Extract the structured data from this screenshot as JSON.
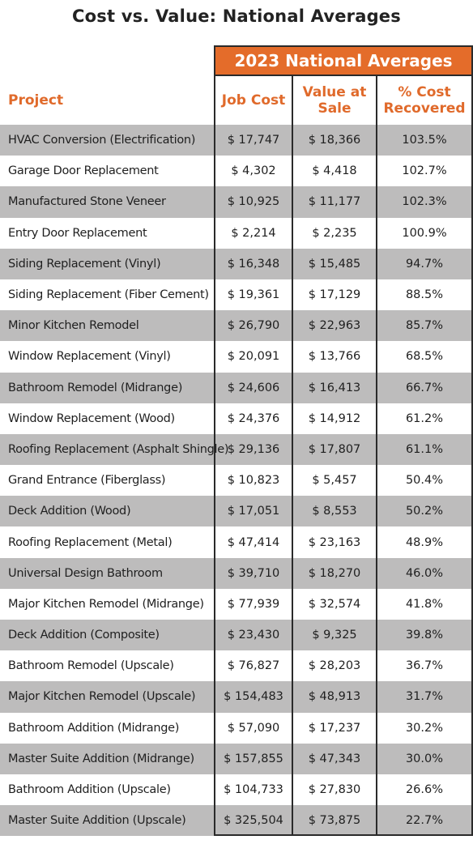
{
  "title": "Cost vs. Value: National Averages",
  "banner": "2023 National Averages",
  "headers": {
    "project": "Project",
    "job_cost": "Job Cost",
    "value_at_sale": "Value at Sale",
    "pct_recovered": "% Cost Recovered"
  },
  "colors": {
    "accent": "#e46c2a",
    "row_shade": "#bdbcbc"
  },
  "chart_data": {
    "type": "table",
    "title": "Cost vs. Value: National Averages",
    "columns": [
      "Project",
      "Job Cost",
      "Value at Sale",
      "% Cost Recovered"
    ],
    "rows": [
      [
        "HVAC Conversion (Electrification)",
        "$ 17,747",
        "$ 18,366",
        "103.5%"
      ],
      [
        "Garage Door Replacement",
        "$ 4,302",
        "$ 4,418",
        "102.7%"
      ],
      [
        "Manufactured Stone Veneer",
        "$ 10,925",
        "$ 11,177",
        "102.3%"
      ],
      [
        "Entry Door Replacement",
        "$ 2,214",
        "$ 2,235",
        "100.9%"
      ],
      [
        "Siding Replacement (Vinyl)",
        "$ 16,348",
        "$ 15,485",
        "94.7%"
      ],
      [
        "Siding Replacement (Fiber Cement)",
        "$ 19,361",
        "$ 17,129",
        "88.5%"
      ],
      [
        "Minor Kitchen Remodel",
        "$ 26,790",
        "$ 22,963",
        "85.7%"
      ],
      [
        "Window Replacement (Vinyl)",
        "$ 20,091",
        "$ 13,766",
        "68.5%"
      ],
      [
        "Bathroom Remodel (Midrange)",
        "$ 24,606",
        "$ 16,413",
        "66.7%"
      ],
      [
        "Window Replacement (Wood)",
        "$ 24,376",
        "$ 14,912",
        "61.2%"
      ],
      [
        "Roofing Replacement (Asphalt Shingle)",
        "$ 29,136",
        "$ 17,807",
        "61.1%"
      ],
      [
        "Grand Entrance (Fiberglass)",
        "$ 10,823",
        "$ 5,457",
        "50.4%"
      ],
      [
        "Deck Addition (Wood)",
        "$ 17,051",
        "$ 8,553",
        "50.2%"
      ],
      [
        "Roofing Replacement (Metal)",
        "$ 47,414",
        "$ 23,163",
        "48.9%"
      ],
      [
        "Universal Design Bathroom",
        "$ 39,710",
        "$ 18,270",
        "46.0%"
      ],
      [
        "Major Kitchen Remodel (Midrange)",
        "$ 77,939",
        "$ 32,574",
        "41.8%"
      ],
      [
        "Deck Addition (Composite)",
        "$ 23,430",
        "$ 9,325",
        "39.8%"
      ],
      [
        "Bathroom Remodel (Upscale)",
        "$ 76,827",
        "$ 28,203",
        "36.7%"
      ],
      [
        "Major Kitchen Remodel (Upscale)",
        "$ 154,483",
        "$ 48,913",
        "31.7%"
      ],
      [
        "Bathroom Addition (Midrange)",
        "$ 57,090",
        "$ 17,237",
        "30.2%"
      ],
      [
        "Master Suite Addition (Midrange)",
        "$ 157,855",
        "$ 47,343",
        "30.0%"
      ],
      [
        "Bathroom Addition (Upscale)",
        "$ 104,733",
        "$ 27,830",
        "26.6%"
      ],
      [
        "Master Suite Addition (Upscale)",
        "$ 325,504",
        "$ 73,875",
        "22.7%"
      ]
    ]
  }
}
